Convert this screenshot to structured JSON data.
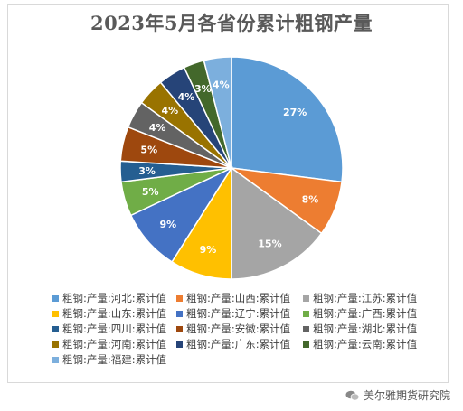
{
  "chart_data": {
    "type": "pie",
    "title": "2023年5月各省份累计粗钢产量",
    "categories": [
      "粗钢:产量:河北:累计值",
      "粗钢:产量:山西:累计值",
      "粗钢:产量:江苏:累计值",
      "粗钢:产量:山东:累计值",
      "粗钢:产量:辽宁:累计值",
      "粗钢:产量:广西:累计值",
      "粗钢:产量:四川:累计值",
      "粗钢:产量:安徽:累计值",
      "粗钢:产量:湖北:累计值",
      "粗钢:产量:河南:累计值",
      "粗钢:产量:广东:累计值",
      "粗钢:产量:云南:累计值",
      "粗钢:产量:福建:累计值"
    ],
    "values": [
      27,
      8,
      15,
      9,
      9,
      5,
      3,
      5,
      4,
      4,
      4,
      3,
      4
    ],
    "data_labels": [
      "27%",
      "8%",
      "15%",
      "9%",
      "9%",
      "5%",
      "3%",
      "5%",
      "4%",
      "4%",
      "4%",
      "3%",
      "4%"
    ],
    "colors": [
      "#5B9BD5",
      "#ED7D31",
      "#A5A5A5",
      "#FFC000",
      "#4472C4",
      "#70AD47",
      "#255E91",
      "#9E480E",
      "#636363",
      "#997300",
      "#264478",
      "#43682B",
      "#7CAFDD"
    ],
    "legend_position": "bottom"
  },
  "watermark": {
    "text": "美尔雅期货研究院",
    "icon": "wechat-icon"
  }
}
